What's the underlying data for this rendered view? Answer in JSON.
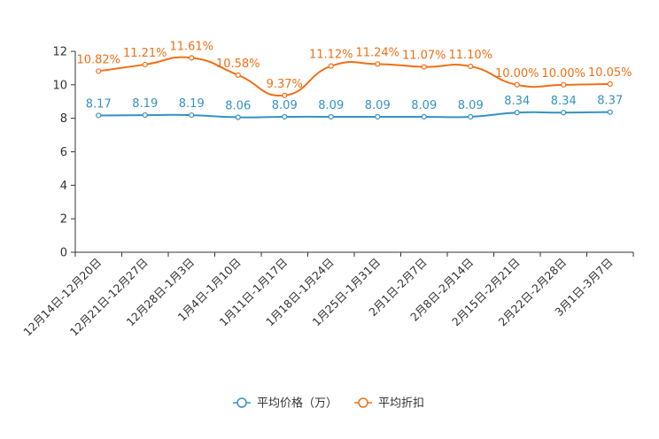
{
  "chart_data": {
    "type": "line",
    "title": "",
    "xlabel": "",
    "ylabel": "",
    "ylim": [
      0,
      12
    ],
    "yticks": [
      0,
      2,
      4,
      6,
      8,
      10,
      12
    ],
    "categories": [
      "12月14日-12月20日",
      "12月21日-12月27日",
      "12月28日-1月3日",
      "1月4日-1月10日",
      "1月11日-1月17日",
      "1月18日-1月24日",
      "1月25日-1月31日",
      "2月1日-2月7日",
      "2月8日-2月14日",
      "2月15日-2月21日",
      "2月22日-2月28日",
      "3月1日-3月7日"
    ],
    "series": [
      {
        "name": "平均价格（万）",
        "color": "#3592c4",
        "values": [
          8.17,
          8.19,
          8.19,
          8.06,
          8.09,
          8.09,
          8.09,
          8.09,
          8.09,
          8.34,
          8.34,
          8.37
        ],
        "labels": [
          "8.17",
          "8.19",
          "8.19",
          "8.06",
          "8.09",
          "8.09",
          "8.09",
          "8.09",
          "8.09",
          "8.34",
          "8.34",
          "8.37"
        ]
      },
      {
        "name": "平均折扣",
        "color": "#f07016",
        "values": [
          10.82,
          11.21,
          11.61,
          10.58,
          9.37,
          11.12,
          11.24,
          11.07,
          11.1,
          10.0,
          10.0,
          10.05
        ],
        "labels": [
          "10.82%",
          "11.21%",
          "11.61%",
          "10.58%",
          "9.37%",
          "11.12%",
          "11.24%",
          "11.07%",
          "11.10%",
          "10.00%",
          "10.00%",
          "10.05%"
        ]
      }
    ],
    "legend_position": "bottom-center"
  }
}
